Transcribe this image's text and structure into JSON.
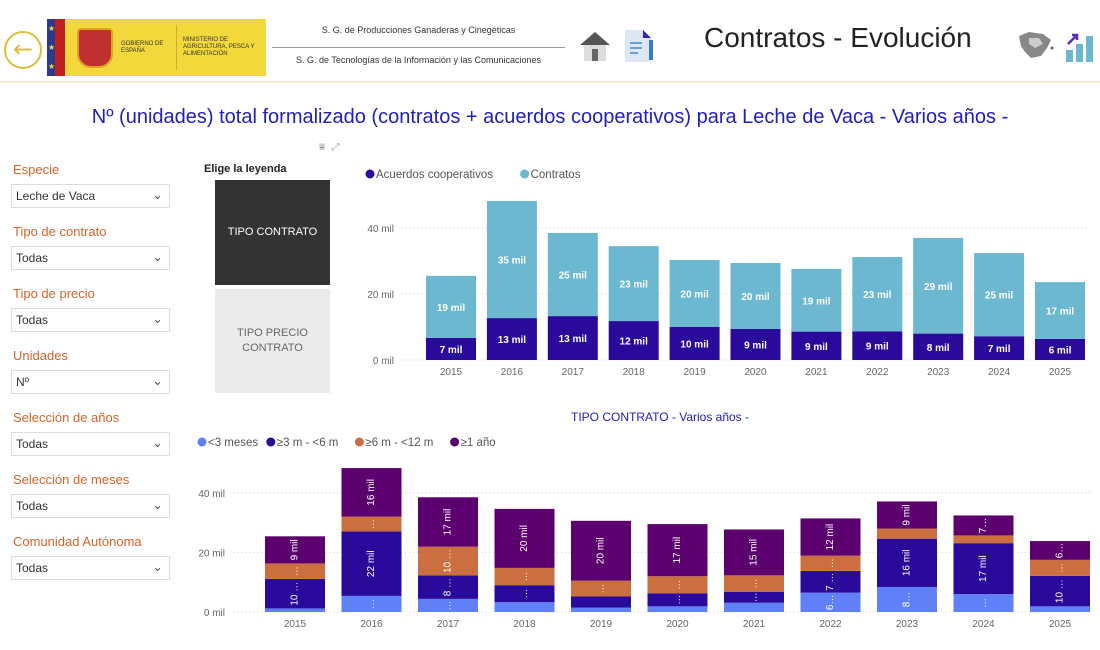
{
  "header": {
    "back_icon": "arrow-left-circle",
    "logo_text": [
      "GOBIERNO DE ESPAÑA",
      "MINISTERIO DE AGRICULTURA, PESCA Y ALIMENTACIÓN"
    ],
    "sg1": "S. G. de Producciones Ganaderas y Cinegéticas",
    "sg2": "S. G. de Tecnologías de la Información y las Comunicaciones",
    "title": "Contratos - Evolución"
  },
  "main_title": "Nº (unidades) total formalizado (contratos + acuerdos cooperativos) para Leche de Vaca - Varios años -",
  "filters": [
    {
      "label": "Especie",
      "value": "Leche de Vaca"
    },
    {
      "label": "Tipo de contrato",
      "value": "Todas"
    },
    {
      "label": "Tipo de precio",
      "value": "Todas"
    },
    {
      "label": "Unidades",
      "value": "Nº"
    },
    {
      "label": "Selección de años",
      "value": "Todas"
    },
    {
      "label": "Selección de meses",
      "value": "Todas"
    },
    {
      "label": "Comunidad Autónoma",
      "value": "Todas"
    }
  ],
  "legend_picker": {
    "title": "Elige la leyenda",
    "options": [
      "TIPO CONTRATO",
      "TIPO PRECIO CONTRATO"
    ],
    "selected": "TIPO CONTRATO"
  },
  "chart_data": [
    {
      "type": "bar",
      "stacked": true,
      "title": "",
      "categories": [
        "2015",
        "2016",
        "2017",
        "2018",
        "2019",
        "2020",
        "2021",
        "2022",
        "2023",
        "2024",
        "2025"
      ],
      "yticks": [
        "0 mil",
        "20 mil",
        "40 mil"
      ],
      "ylim": [
        0,
        50
      ],
      "grid": true,
      "legend": "top-left",
      "series": [
        {
          "name": "Acuerdos cooperativos",
          "color": "#2a0a9a",
          "values": [
            6.7,
            12.7,
            13.3,
            11.8,
            10.0,
            9.4,
            8.6,
            8.7,
            8.0,
            7.2,
            6.4
          ],
          "labels": [
            "7 mil",
            "13 mil",
            "13 mil",
            "12 mil",
            "10 mil",
            "9 mil",
            "9 mil",
            "9 mil",
            "8 mil",
            "7 mil",
            "6 mil"
          ]
        },
        {
          "name": "Contratos",
          "color": "#6cb8d0",
          "values": [
            18.8,
            35.5,
            25.2,
            22.7,
            20.3,
            20.0,
            19.0,
            22.5,
            29.0,
            25.2,
            17.2
          ],
          "labels": [
            "19 mil",
            "35 mil",
            "25 mil",
            "23 mil",
            "20 mil",
            "20 mil",
            "19 mil",
            "23 mil",
            "29 mil",
            "25 mil",
            "17 mil"
          ]
        }
      ]
    },
    {
      "type": "bar",
      "stacked": true,
      "title": "TIPO CONTRATO - Varios años -",
      "categories": [
        "2015",
        "2016",
        "2017",
        "2018",
        "2019",
        "2020",
        "2021",
        "2022",
        "2023",
        "2024",
        "2025"
      ],
      "yticks": [
        "0 mil",
        "20 mil",
        "40 mil"
      ],
      "ylim": [
        0,
        50
      ],
      "grid": true,
      "legend": "top-left",
      "series": [
        {
          "name": "<3 meses",
          "color": "#6080f8",
          "values": [
            1.2,
            5.4,
            4.4,
            3.3,
            1.5,
            1.9,
            3.1,
            6.5,
            8.4,
            6.0,
            1.9
          ],
          "labels": [
            "",
            "…",
            "…",
            "",
            "",
            "",
            "",
            "6…",
            "8…",
            "…",
            ""
          ]
        },
        {
          "name": "≥3 m - <6 m",
          "color": "#2a0a9a",
          "values": [
            9.9,
            21.6,
            7.9,
            5.7,
            3.7,
            4.4,
            3.7,
            7.3,
            16.2,
            17.1,
            10.2
          ],
          "labels": [
            "10 …",
            "22 mil",
            "8 …",
            "…",
            "",
            "…",
            "…",
            "7 …",
            "16 mil",
            "17 mil",
            "10 …"
          ]
        },
        {
          "name": "≥6 m - <12 m",
          "color": "#cc6f40",
          "values": [
            5.2,
            5.0,
            9.6,
            5.8,
            5.3,
            5.7,
            5.5,
            5.1,
            3.4,
            2.6,
            5.4
          ],
          "labels": [
            "…",
            "…",
            "10 …",
            "…",
            "…",
            "…",
            "…",
            "…",
            "",
            "",
            "…"
          ]
        },
        {
          "name": "≥1 año",
          "color": "#5c0070",
          "values": [
            9.1,
            16.3,
            16.6,
            19.8,
            20.1,
            17.5,
            15.4,
            12.5,
            9.1,
            6.7,
            6.3
          ],
          "labels": [
            "9 mil",
            "16 mil",
            "17 mil",
            "20 mil",
            "20 mil",
            "17 mil",
            "15 mil",
            "12 mil",
            "9 mil",
            "7…",
            "6…"
          ]
        }
      ]
    }
  ]
}
